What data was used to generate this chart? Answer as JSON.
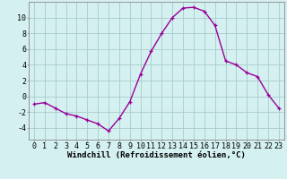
{
  "hours": [
    0,
    1,
    2,
    3,
    4,
    5,
    6,
    7,
    8,
    9,
    10,
    11,
    12,
    13,
    14,
    15,
    16,
    17,
    18,
    19,
    20,
    21,
    22,
    23
  ],
  "values": [
    -1.0,
    -0.8,
    -1.5,
    -2.2,
    -2.5,
    -3.0,
    -3.5,
    -4.4,
    -2.8,
    -0.7,
    2.8,
    5.7,
    8.0,
    10.0,
    11.2,
    11.3,
    10.8,
    9.0,
    4.5,
    4.0,
    3.0,
    2.5,
    0.2,
    -1.5
  ],
  "line_color": "#990099",
  "marker": "+",
  "marker_size": 3,
  "bg_color": "#d4f0f0",
  "grid_color": "#aacccc",
  "xlabel": "Windchill (Refroidissement éolien,°C)",
  "xlim": [
    -0.5,
    23.5
  ],
  "ylim": [
    -5.5,
    12.0
  ],
  "yticks": [
    -4,
    -2,
    0,
    2,
    4,
    6,
    8,
    10
  ],
  "xticks": [
    0,
    1,
    2,
    3,
    4,
    5,
    6,
    7,
    8,
    9,
    10,
    11,
    12,
    13,
    14,
    15,
    16,
    17,
    18,
    19,
    20,
    21,
    22,
    23
  ],
  "xlabel_fontsize": 6.5,
  "tick_fontsize": 6.0,
  "line_width": 1.0
}
